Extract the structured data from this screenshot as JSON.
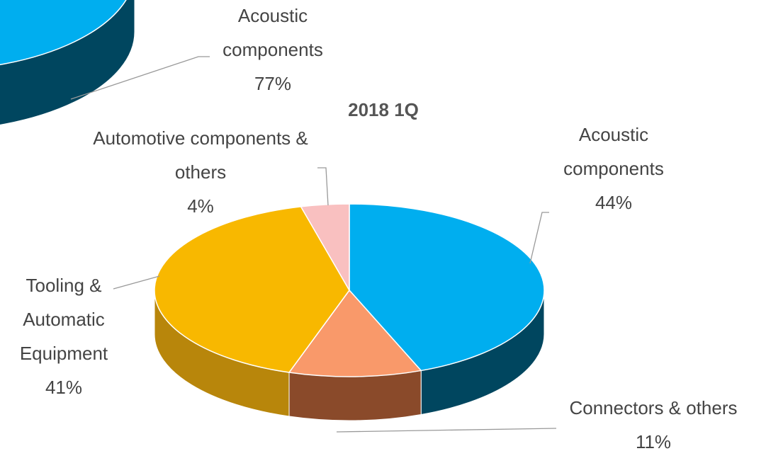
{
  "chart_data": [
    {
      "type": "pie",
      "categories": [
        "Acoustic components"
      ],
      "values": [
        77
      ],
      "value_labels": [
        "77%"
      ],
      "colors": [
        "#00aeef"
      ],
      "side_colors": [
        "#00465f"
      ]
    },
    {
      "type": "pie",
      "title": "2018 1Q",
      "categories": [
        "Acoustic components",
        "Connectors & others",
        "Tooling & Automatic Equipment",
        "Automotive components & others"
      ],
      "values": [
        44,
        11,
        41,
        4
      ],
      "value_labels": [
        "44%",
        "11%",
        "41%",
        "4%"
      ],
      "colors": [
        "#00aeef",
        "#f9996a",
        "#f8b800",
        "#f9c0c0"
      ],
      "side_colors": [
        "#00465f",
        "#8a4a2a",
        "#b8860b",
        "#b88a8a"
      ]
    }
  ]
}
